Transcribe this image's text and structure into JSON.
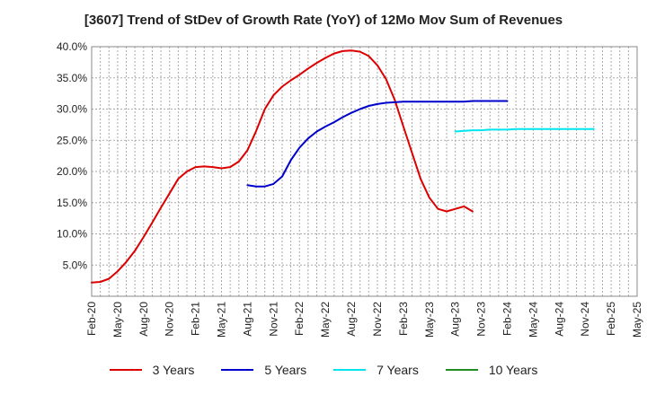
{
  "chart_data": {
    "type": "line",
    "title": "[3607]  Trend of StDev of Growth Rate (YoY) of 12Mo Mov Sum of Revenues",
    "xlabel": "",
    "ylabel": "",
    "ylim": [
      0,
      40
    ],
    "yticks": [
      5,
      10,
      15,
      20,
      25,
      30,
      35,
      40
    ],
    "ytick_labels": [
      "5.0%",
      "10.0%",
      "15.0%",
      "20.0%",
      "25.0%",
      "30.0%",
      "35.0%",
      "40.0%"
    ],
    "x_range_months": [
      0,
      63
    ],
    "x_ticks": [
      {
        "m": 0,
        "label": "Feb-20"
      },
      {
        "m": 3,
        "label": "May-20"
      },
      {
        "m": 6,
        "label": "Aug-20"
      },
      {
        "m": 9,
        "label": "Nov-20"
      },
      {
        "m": 12,
        "label": "Feb-21"
      },
      {
        "m": 15,
        "label": "May-21"
      },
      {
        "m": 18,
        "label": "Aug-21"
      },
      {
        "m": 21,
        "label": "Nov-21"
      },
      {
        "m": 24,
        "label": "Feb-22"
      },
      {
        "m": 27,
        "label": "May-22"
      },
      {
        "m": 30,
        "label": "Aug-22"
      },
      {
        "m": 33,
        "label": "Nov-22"
      },
      {
        "m": 36,
        "label": "Feb-23"
      },
      {
        "m": 39,
        "label": "May-23"
      },
      {
        "m": 42,
        "label": "Aug-23"
      },
      {
        "m": 45,
        "label": "Nov-23"
      },
      {
        "m": 48,
        "label": "Feb-24"
      },
      {
        "m": 51,
        "label": "May-24"
      },
      {
        "m": 54,
        "label": "Aug-24"
      },
      {
        "m": 57,
        "label": "Nov-24"
      },
      {
        "m": 60,
        "label": "Feb-25"
      },
      {
        "m": 63,
        "label": "May-25"
      }
    ],
    "grid": true,
    "legend_position": "bottom",
    "series": [
      {
        "name": "3 Years",
        "color": "#dd0000",
        "start_m": 0,
        "values": [
          2.2,
          2.3,
          2.8,
          4.0,
          5.5,
          7.3,
          9.5,
          11.8,
          14.2,
          16.5,
          18.8,
          20.0,
          20.7,
          20.8,
          20.7,
          20.5,
          20.7,
          21.6,
          23.4,
          26.5,
          30.0,
          32.2,
          33.6,
          34.6,
          35.5,
          36.5,
          37.4,
          38.2,
          38.9,
          39.3,
          39.4,
          39.2,
          38.5,
          37.0,
          34.8,
          31.5,
          27.2,
          23.0,
          18.8,
          15.8,
          14.0,
          13.6,
          14.0,
          14.4,
          13.6
        ]
      },
      {
        "name": "5 Years",
        "color": "#0000cc",
        "start_m": 18,
        "values": [
          17.8,
          17.6,
          17.6,
          18.0,
          19.2,
          21.8,
          23.8,
          25.3,
          26.4,
          27.2,
          27.9,
          28.7,
          29.4,
          30.0,
          30.5,
          30.8,
          31.0,
          31.1,
          31.2,
          31.2,
          31.2,
          31.2,
          31.2,
          31.2,
          31.2,
          31.2,
          31.3,
          31.3,
          31.3,
          31.3,
          31.3
        ]
      },
      {
        "name": "7 Years",
        "color": "#00e5ee",
        "start_m": 42,
        "values": [
          26.4,
          26.5,
          26.6,
          26.6,
          26.7,
          26.7,
          26.7,
          26.8,
          26.8,
          26.8,
          26.8,
          26.8,
          26.8,
          26.8,
          26.8,
          26.8,
          26.8
        ]
      },
      {
        "name": "10 Years",
        "color": "#228b22",
        "start_m": 0,
        "values": []
      }
    ]
  }
}
